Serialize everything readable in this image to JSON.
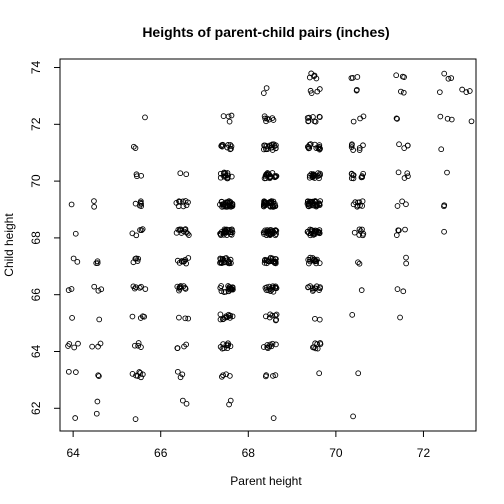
{
  "chart_data": {
    "type": "scatter",
    "title": "Heights of parent-child pairs (inches)",
    "xlabel": "Parent height",
    "ylabel": "Child height",
    "xlim": [
      63.7,
      73.2
    ],
    "ylim": [
      61.2,
      74.3
    ],
    "xticks": [
      64,
      66,
      68,
      70,
      72
    ],
    "yticks": [
      62,
      64,
      66,
      68,
      70,
      72,
      74
    ],
    "grid": false,
    "point_style": "open-circle",
    "jitter": true,
    "clusters": [
      {
        "x": 64.0,
        "y": 61.7,
        "n": 1
      },
      {
        "x": 64.5,
        "y": 61.7,
        "n": 1
      },
      {
        "x": 64.5,
        "y": 62.2,
        "n": 1
      },
      {
        "x": 64.0,
        "y": 63.2,
        "n": 2
      },
      {
        "x": 64.5,
        "y": 63.2,
        "n": 2
      },
      {
        "x": 64.0,
        "y": 64.2,
        "n": 4
      },
      {
        "x": 64.5,
        "y": 64.2,
        "n": 3
      },
      {
        "x": 64.0,
        "y": 65.2,
        "n": 1
      },
      {
        "x": 64.5,
        "y": 65.2,
        "n": 1
      },
      {
        "x": 64.0,
        "y": 66.2,
        "n": 2
      },
      {
        "x": 64.5,
        "y": 66.2,
        "n": 3
      },
      {
        "x": 64.0,
        "y": 67.2,
        "n": 2
      },
      {
        "x": 64.5,
        "y": 67.2,
        "n": 3
      },
      {
        "x": 64.0,
        "y": 68.2,
        "n": 1
      },
      {
        "x": 64.0,
        "y": 69.2,
        "n": 1
      },
      {
        "x": 64.5,
        "y": 69.2,
        "n": 2
      },
      {
        "x": 65.5,
        "y": 61.7,
        "n": 1
      },
      {
        "x": 65.5,
        "y": 63.2,
        "n": 7
      },
      {
        "x": 65.5,
        "y": 64.2,
        "n": 4
      },
      {
        "x": 65.5,
        "y": 65.2,
        "n": 4
      },
      {
        "x": 65.5,
        "y": 66.2,
        "n": 6
      },
      {
        "x": 65.5,
        "y": 67.2,
        "n": 5
      },
      {
        "x": 65.5,
        "y": 68.2,
        "n": 5
      },
      {
        "x": 65.5,
        "y": 69.2,
        "n": 6
      },
      {
        "x": 65.5,
        "y": 70.2,
        "n": 3
      },
      {
        "x": 65.5,
        "y": 71.2,
        "n": 2
      },
      {
        "x": 65.5,
        "y": 72.2,
        "n": 1
      },
      {
        "x": 66.5,
        "y": 62.2,
        "n": 2
      },
      {
        "x": 66.5,
        "y": 63.2,
        "n": 3
      },
      {
        "x": 66.5,
        "y": 64.2,
        "n": 4
      },
      {
        "x": 66.5,
        "y": 65.2,
        "n": 3
      },
      {
        "x": 66.5,
        "y": 66.2,
        "n": 9
      },
      {
        "x": 66.5,
        "y": 67.2,
        "n": 10
      },
      {
        "x": 66.5,
        "y": 68.2,
        "n": 12
      },
      {
        "x": 66.5,
        "y": 69.2,
        "n": 9
      },
      {
        "x": 66.5,
        "y": 70.2,
        "n": 2
      },
      {
        "x": 67.5,
        "y": 62.2,
        "n": 2
      },
      {
        "x": 67.5,
        "y": 63.2,
        "n": 4
      },
      {
        "x": 67.5,
        "y": 64.2,
        "n": 10
      },
      {
        "x": 67.5,
        "y": 65.2,
        "n": 12
      },
      {
        "x": 67.5,
        "y": 66.2,
        "n": 18
      },
      {
        "x": 67.5,
        "y": 67.2,
        "n": 20
      },
      {
        "x": 67.5,
        "y": 68.2,
        "n": 26
      },
      {
        "x": 67.5,
        "y": 69.2,
        "n": 30
      },
      {
        "x": 67.5,
        "y": 70.2,
        "n": 14
      },
      {
        "x": 67.5,
        "y": 71.2,
        "n": 10
      },
      {
        "x": 67.5,
        "y": 72.2,
        "n": 4
      },
      {
        "x": 68.5,
        "y": 61.7,
        "n": 1
      },
      {
        "x": 68.5,
        "y": 63.2,
        "n": 4
      },
      {
        "x": 68.5,
        "y": 64.2,
        "n": 9
      },
      {
        "x": 68.5,
        "y": 65.2,
        "n": 8
      },
      {
        "x": 68.5,
        "y": 66.2,
        "n": 16
      },
      {
        "x": 68.5,
        "y": 67.2,
        "n": 22
      },
      {
        "x": 68.5,
        "y": 68.2,
        "n": 28
      },
      {
        "x": 68.5,
        "y": 69.2,
        "n": 34
      },
      {
        "x": 68.5,
        "y": 70.2,
        "n": 20
      },
      {
        "x": 68.5,
        "y": 71.2,
        "n": 18
      },
      {
        "x": 68.5,
        "y": 72.2,
        "n": 7
      },
      {
        "x": 68.5,
        "y": 73.2,
        "n": 2
      },
      {
        "x": 69.5,
        "y": 63.2,
        "n": 1
      },
      {
        "x": 69.5,
        "y": 64.2,
        "n": 8
      },
      {
        "x": 69.5,
        "y": 65.2,
        "n": 2
      },
      {
        "x": 69.5,
        "y": 66.2,
        "n": 12
      },
      {
        "x": 69.5,
        "y": 67.2,
        "n": 16
      },
      {
        "x": 69.5,
        "y": 68.2,
        "n": 25
      },
      {
        "x": 69.5,
        "y": 69.2,
        "n": 30
      },
      {
        "x": 69.5,
        "y": 70.2,
        "n": 18
      },
      {
        "x": 69.5,
        "y": 71.2,
        "n": 14
      },
      {
        "x": 69.5,
        "y": 72.2,
        "n": 9
      },
      {
        "x": 69.5,
        "y": 73.2,
        "n": 4
      },
      {
        "x": 69.5,
        "y": 73.7,
        "n": 5
      },
      {
        "x": 70.5,
        "y": 61.7,
        "n": 1
      },
      {
        "x": 70.5,
        "y": 63.2,
        "n": 1
      },
      {
        "x": 70.5,
        "y": 65.2,
        "n": 1
      },
      {
        "x": 70.5,
        "y": 66.2,
        "n": 1
      },
      {
        "x": 70.5,
        "y": 67.2,
        "n": 2
      },
      {
        "x": 70.5,
        "y": 68.2,
        "n": 7
      },
      {
        "x": 70.5,
        "y": 69.2,
        "n": 9
      },
      {
        "x": 70.5,
        "y": 70.2,
        "n": 10
      },
      {
        "x": 70.5,
        "y": 71.2,
        "n": 7
      },
      {
        "x": 70.5,
        "y": 72.2,
        "n": 3
      },
      {
        "x": 70.5,
        "y": 73.2,
        "n": 2
      },
      {
        "x": 70.5,
        "y": 73.7,
        "n": 3
      },
      {
        "x": 71.5,
        "y": 65.2,
        "n": 1
      },
      {
        "x": 71.5,
        "y": 66.2,
        "n": 2
      },
      {
        "x": 71.5,
        "y": 67.2,
        "n": 2
      },
      {
        "x": 71.5,
        "y": 68.2,
        "n": 4
      },
      {
        "x": 71.5,
        "y": 69.2,
        "n": 3
      },
      {
        "x": 71.5,
        "y": 70.2,
        "n": 4
      },
      {
        "x": 71.5,
        "y": 71.2,
        "n": 4
      },
      {
        "x": 71.5,
        "y": 72.2,
        "n": 2
      },
      {
        "x": 71.5,
        "y": 73.2,
        "n": 2
      },
      {
        "x": 71.5,
        "y": 73.7,
        "n": 3
      },
      {
        "x": 72.5,
        "y": 68.2,
        "n": 1
      },
      {
        "x": 72.5,
        "y": 69.2,
        "n": 2
      },
      {
        "x": 72.5,
        "y": 70.2,
        "n": 1
      },
      {
        "x": 72.5,
        "y": 71.2,
        "n": 1
      },
      {
        "x": 72.5,
        "y": 72.2,
        "n": 3
      },
      {
        "x": 72.5,
        "y": 73.2,
        "n": 1
      },
      {
        "x": 72.5,
        "y": 73.7,
        "n": 3
      },
      {
        "x": 73.0,
        "y": 72.2,
        "n": 1
      },
      {
        "x": 73.0,
        "y": 73.2,
        "n": 3
      }
    ]
  }
}
